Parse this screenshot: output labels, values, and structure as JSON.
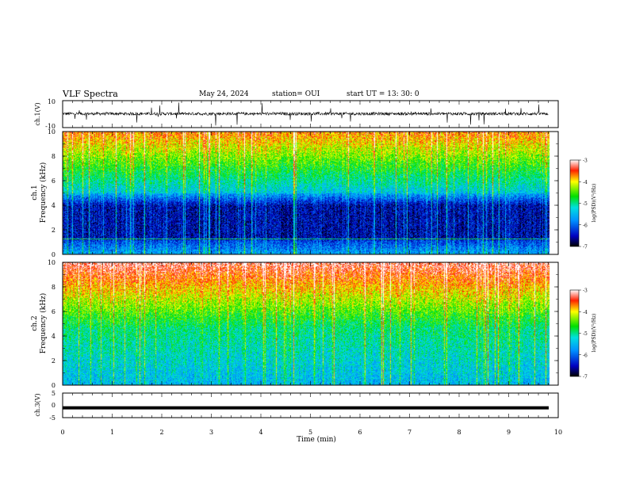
{
  "header": {
    "title": "VLF Spectra",
    "date": "May 24, 2024",
    "station": "station= OUI",
    "start": "start  UT  =   13: 30: 0"
  },
  "chart_data": {
    "type": "heatmap",
    "x_label": "Time  (min)",
    "x_ticks": [
      "0",
      "1",
      "2",
      "3",
      "4",
      "5",
      "6",
      "7",
      "8",
      "9",
      "10"
    ],
    "xlim": [
      0,
      10
    ],
    "panels": [
      {
        "name": "ch.1(V)",
        "type": "line",
        "ylabel": "ch.1(V)",
        "ylim": [
          -10,
          10
        ],
        "y_ticks": [
          "10",
          "-10"
        ],
        "trend": "noisy waveform centered near 0 V with occasional spikes reaching about ±10 V"
      },
      {
        "name": "ch.1 Frequency (kHz)",
        "type": "heatmap",
        "ylabel": [
          "ch.1",
          "Frequency  (kHz)"
        ],
        "ylim": [
          0,
          10
        ],
        "y_ticks": [
          "0",
          "2",
          "4",
          "6",
          "8",
          "10"
        ],
        "colorbar": {
          "label": "log(PSD)(V²/Hz)",
          "range": [
            -7,
            -3
          ],
          "ticks": [
            "-3",
            "-4",
            "-5",
            "-6",
            "-7"
          ]
        },
        "description_values": {
          "low_band_level": -6.5,
          "high_band_level": -3.8
        }
      },
      {
        "name": "ch.2 Frequency (kHz)",
        "type": "heatmap",
        "ylabel": [
          "ch.2",
          "Frequency  (kHz)"
        ],
        "ylim": [
          0,
          10
        ],
        "y_ticks": [
          "0",
          "2",
          "4",
          "6",
          "8",
          "10"
        ],
        "colorbar": {
          "label": "log(PSD)(V²/Hz)",
          "range": [
            -7,
            -3
          ],
          "ticks": [
            "-3",
            "-4",
            "-5",
            "-6",
            "-7"
          ]
        },
        "description_values": {
          "low_band_level": -5.5,
          "high_band_level": -3.2
        }
      },
      {
        "name": "ch.3(V)",
        "type": "line",
        "ylabel": "ch.3(V)",
        "ylim": [
          -5,
          5
        ],
        "y_ticks": [
          "5",
          "0",
          "-5"
        ],
        "constant_value": -1
      }
    ]
  }
}
